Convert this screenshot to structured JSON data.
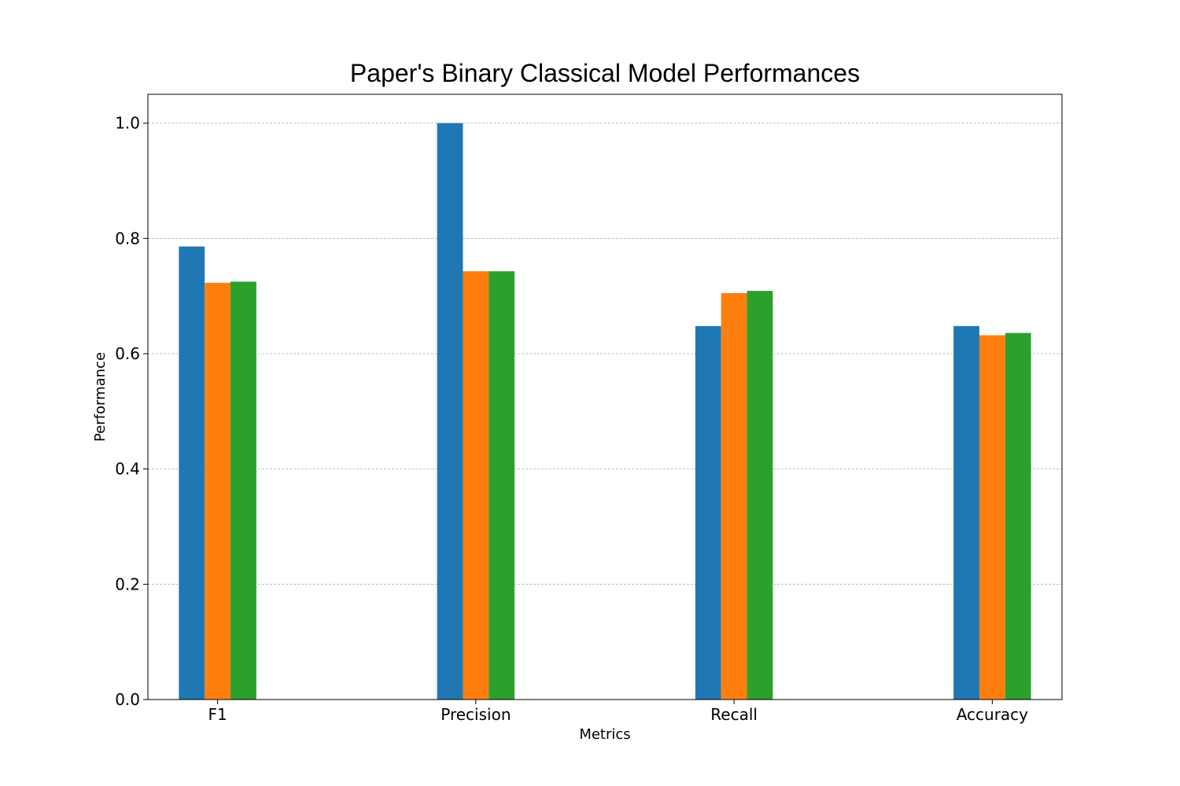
{
  "chart_data": {
    "type": "bar",
    "title": "Paper's Binary Classical Model Performances",
    "xlabel": "Metrics",
    "ylabel": "Performance",
    "categories": [
      "F1",
      "Precision",
      "Recall",
      "Accuracy"
    ],
    "ylim": [
      0,
      1.05
    ],
    "yticks": [
      "0.0",
      "0.2",
      "0.4",
      "0.6",
      "0.8",
      "1.0"
    ],
    "grid": "y",
    "legend": "none",
    "series": [
      {
        "values": [
          0.786,
          1.0,
          0.648,
          0.648
        ],
        "color": "#1f77b4"
      },
      {
        "values": [
          0.723,
          0.743,
          0.705,
          0.632
        ],
        "color": "#ff7f0e"
      },
      {
        "values": [
          0.725,
          0.743,
          0.709,
          0.636
        ],
        "color": "#2ca02c"
      }
    ]
  }
}
